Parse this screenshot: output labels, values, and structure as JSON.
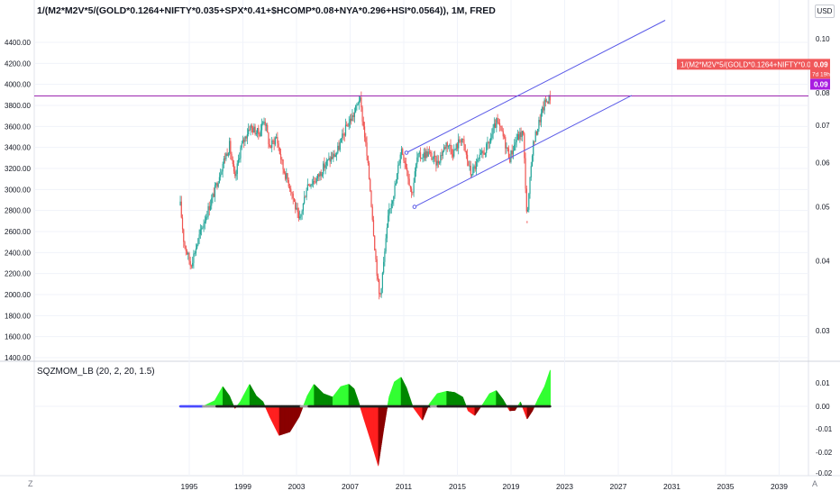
{
  "header": {
    "title": "1/(M2*M2V*5/(GOLD*0.1264+NIFTY*0.035+SPX*0.41+$HCOMP*0.08+NYA*0.296+HSI*0.0564)), 1M, FRED",
    "currency": "USD"
  },
  "indicator": {
    "title": "SQZMOM_LB (20, 2, 20, 1.5)"
  },
  "controls": {
    "left": "Z",
    "right": "A"
  },
  "price_tag": {
    "label": "1/(M2*M2V*5/(GOLD*0.1264+NIFTY*0.035+…",
    "value": "0.09",
    "countdown": "7d 19h",
    "level_value": "0.09"
  },
  "colors": {
    "up": "#26a69a",
    "down": "#ef5350",
    "channel": "#5b5be8",
    "level": "#9c27b0",
    "level_badge": "#a81ee0",
    "tag": "#f0585a",
    "mom_light_green": "#33ff33",
    "mom_dark_green": "#008800",
    "mom_red": "#ff2020",
    "mom_dark_red": "#8a0000",
    "grid": "#f0f3fa",
    "axis_text": "#131722"
  },
  "chart_data": [
    {
      "type": "candlestick",
      "name": "main",
      "x_start": 1994.33,
      "x_end": 2021.92,
      "x_ticks": [
        "1995",
        "1999",
        "2003",
        "2007",
        "2011",
        "2015",
        "2019",
        "2023",
        "2027",
        "2031",
        "2035",
        "2039"
      ],
      "left_axis": {
        "ticks": [
          "4400.00",
          "4200.00",
          "4000.00",
          "3800.00",
          "3600.00",
          "3400.00",
          "3200.00",
          "3000.00",
          "2800.00",
          "2600.00",
          "2400.00",
          "2200.00",
          "2000.00",
          "1800.00",
          "1600.00",
          "1400.00"
        ]
      },
      "right_axis": {
        "scale": "log",
        "ticks": [
          "0.10",
          "0.09",
          "0.08",
          "0.07",
          "0.06",
          "0.05",
          "0.04",
          "0.03"
        ]
      },
      "anchors": [
        [
          1994.33,
          2850
        ],
        [
          1994.6,
          2500
        ],
        [
          1995.1,
          2280
        ],
        [
          1995.5,
          2450
        ],
        [
          1996.1,
          2700
        ],
        [
          1996.8,
          2950
        ],
        [
          1997.5,
          3250
        ],
        [
          1998.0,
          3420
        ],
        [
          1998.4,
          3080
        ],
        [
          1998.8,
          3380
        ],
        [
          1999.5,
          3600
        ],
        [
          2000.2,
          3530
        ],
        [
          2000.6,
          3680
        ],
        [
          2001.0,
          3400
        ],
        [
          2001.5,
          3500
        ],
        [
          2002.0,
          3200
        ],
        [
          2002.6,
          3000
        ],
        [
          2003.2,
          2680
        ],
        [
          2003.8,
          3050
        ],
        [
          2004.5,
          3100
        ],
        [
          2005.2,
          3250
        ],
        [
          2006.0,
          3350
        ],
        [
          2006.8,
          3620
        ],
        [
          2007.3,
          3720
        ],
        [
          2007.7,
          3880
        ],
        [
          2008.1,
          3500
        ],
        [
          2008.5,
          3000
        ],
        [
          2008.9,
          2350
        ],
        [
          2009.2,
          1950
        ],
        [
          2009.5,
          2300
        ],
        [
          2009.9,
          2800
        ],
        [
          2010.4,
          3050
        ],
        [
          2010.8,
          3400
        ],
        [
          2011.2,
          3220
        ],
        [
          2011.6,
          2950
        ],
        [
          2012.0,
          3300
        ],
        [
          2012.8,
          3350
        ],
        [
          2013.5,
          3250
        ],
        [
          2014.2,
          3450
        ],
        [
          2014.7,
          3350
        ],
        [
          2015.3,
          3500
        ],
        [
          2016.0,
          3150
        ],
        [
          2016.7,
          3300
        ],
        [
          2017.3,
          3420
        ],
        [
          2017.9,
          3640
        ],
        [
          2018.3,
          3550
        ],
        [
          2018.9,
          3300
        ],
        [
          2019.4,
          3480
        ],
        [
          2019.9,
          3550
        ],
        [
          2020.2,
          2700
        ],
        [
          2020.6,
          3400
        ],
        [
          2021.0,
          3600
        ],
        [
          2021.5,
          3820
        ],
        [
          2021.92,
          3880
        ]
      ],
      "wicks": [
        {
          "x": 2009.2,
          "low": 1950
        },
        {
          "x": 2020.2,
          "low": 2680
        }
      ],
      "horizontal_level": 3890,
      "channel": {
        "upper": [
          [
            2011.2,
            3350
          ],
          [
            2030.5,
            4610
          ]
        ],
        "lower": [
          [
            2011.8,
            2835
          ],
          [
            2028.0,
            3895
          ]
        ]
      }
    },
    {
      "type": "histogram",
      "name": "SQZMOM_LB",
      "axis": {
        "ticks": [
          "0.01",
          "0.00",
          "-0.01",
          "-0.02",
          "-0.02"
        ]
      },
      "x_start": 1994.33,
      "x_end": 2021.92,
      "momentum_anchors": [
        [
          1994.33,
          0.0
        ],
        [
          1996.0,
          0.0
        ],
        [
          1996.9,
          0.0025
        ],
        [
          1997.5,
          0.0085
        ],
        [
          1998.0,
          0.0045
        ],
        [
          1998.4,
          -0.001
        ],
        [
          1998.8,
          0.002
        ],
        [
          1999.5,
          0.0095
        ],
        [
          2000.0,
          0.0045
        ],
        [
          2000.5,
          0.002
        ],
        [
          2001.0,
          -0.0045
        ],
        [
          2001.7,
          -0.0125
        ],
        [
          2002.5,
          -0.011
        ],
        [
          2003.2,
          -0.0045
        ],
        [
          2003.8,
          0.0045
        ],
        [
          2004.3,
          0.0095
        ],
        [
          2005.0,
          0.0055
        ],
        [
          2005.7,
          0.004
        ],
        [
          2006.3,
          0.0085
        ],
        [
          2006.9,
          0.0095
        ],
        [
          2007.3,
          0.0075
        ],
        [
          2007.6,
          0.0025
        ],
        [
          2008.0,
          -0.005
        ],
        [
          2008.5,
          -0.014
        ],
        [
          2009.1,
          -0.0255
        ],
        [
          2009.5,
          -0.01
        ],
        [
          2009.9,
          0.004
        ],
        [
          2010.3,
          0.0105
        ],
        [
          2010.8,
          0.0125
        ],
        [
          2011.2,
          0.008
        ],
        [
          2011.7,
          -0.0005
        ],
        [
          2012.4,
          -0.006
        ],
        [
          2012.9,
          0.001
        ],
        [
          2013.5,
          0.0055
        ],
        [
          2014.2,
          0.0065
        ],
        [
          2014.8,
          0.006
        ],
        [
          2015.4,
          0.004
        ],
        [
          2015.8,
          -0.002
        ],
        [
          2016.3,
          -0.004
        ],
        [
          2016.9,
          0.001
        ],
        [
          2017.4,
          0.0055
        ],
        [
          2017.9,
          0.0068
        ],
        [
          2018.4,
          0.003
        ],
        [
          2018.9,
          -0.002
        ],
        [
          2019.3,
          -0.0018
        ],
        [
          2019.7,
          0.002
        ],
        [
          2020.2,
          -0.0055
        ],
        [
          2020.6,
          -0.002
        ],
        [
          2021.0,
          0.003
        ],
        [
          2021.5,
          0.0085
        ],
        [
          2021.92,
          0.0155
        ]
      ]
    }
  ]
}
